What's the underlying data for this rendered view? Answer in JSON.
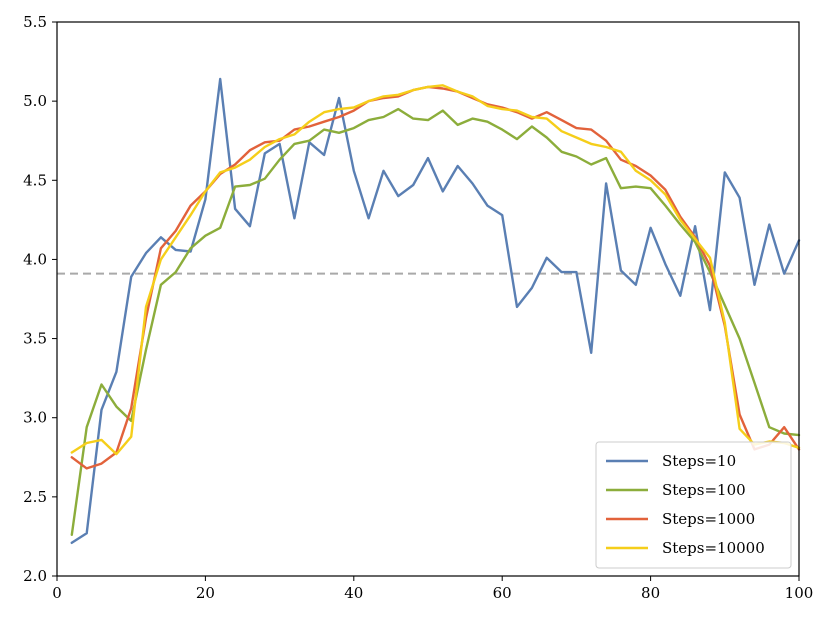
{
  "chart_data": {
    "type": "line",
    "title": "",
    "xlabel": "",
    "ylabel": "",
    "xlim": [
      0,
      100
    ],
    "ylim": [
      2.0,
      5.5
    ],
    "x_ticks": [
      0,
      20,
      40,
      60,
      80,
      100
    ],
    "x_tick_labels": [
      "0",
      "20",
      "40",
      "60",
      "80",
      "100"
    ],
    "y_ticks": [
      2.0,
      2.5,
      3.0,
      3.5,
      4.0,
      4.5,
      5.0,
      5.5
    ],
    "y_tick_labels": [
      "2.0",
      "2.5",
      "3.0",
      "3.5",
      "4.0",
      "4.5",
      "5.0",
      "5.5"
    ],
    "grid": false,
    "legend_position": "bottom-right",
    "reference_line": {
      "y": 3.91,
      "style": "dashed",
      "color": "#a9a9a9"
    },
    "x": [
      2,
      4,
      6,
      8,
      10,
      12,
      14,
      16,
      18,
      20,
      22,
      24,
      26,
      28,
      30,
      32,
      34,
      36,
      38,
      40,
      42,
      44,
      46,
      48,
      50,
      52,
      54,
      56,
      58,
      60,
      62,
      64,
      66,
      68,
      70,
      72,
      74,
      76,
      78,
      80,
      82,
      84,
      86,
      88,
      90,
      92,
      94,
      96,
      98,
      100
    ],
    "series": [
      {
        "name": "Steps=10",
        "color": "#5a7fb3",
        "values": [
          2.21,
          2.27,
          3.05,
          3.29,
          3.89,
          4.04,
          4.14,
          4.06,
          4.05,
          4.38,
          5.14,
          4.32,
          4.21,
          4.67,
          4.73,
          4.26,
          4.74,
          4.66,
          5.02,
          4.56,
          4.26,
          4.56,
          4.4,
          4.47,
          4.64,
          4.43,
          4.59,
          4.48,
          4.34,
          4.28,
          3.7,
          3.82,
          4.01,
          3.92,
          3.92,
          3.41,
          4.48,
          3.93,
          3.84,
          4.2,
          3.97,
          3.77,
          4.21,
          3.68,
          4.55,
          4.39,
          3.84,
          4.22,
          3.91,
          4.12
        ]
      },
      {
        "name": "Steps=100",
        "color": "#8cad3b",
        "values": [
          2.26,
          2.94,
          3.21,
          3.07,
          2.98,
          3.43,
          3.84,
          3.92,
          4.07,
          4.15,
          4.2,
          4.46,
          4.47,
          4.51,
          4.63,
          4.73,
          4.75,
          4.82,
          4.8,
          4.83,
          4.88,
          4.9,
          4.95,
          4.89,
          4.88,
          4.94,
          4.85,
          4.89,
          4.87,
          4.82,
          4.76,
          4.84,
          4.77,
          4.68,
          4.65,
          4.6,
          4.64,
          4.45,
          4.46,
          4.45,
          4.34,
          4.22,
          4.11,
          3.92,
          3.71,
          3.5,
          3.22,
          2.94,
          2.9,
          2.89
        ]
      },
      {
        "name": "Steps=1000",
        "color": "#e2623b",
        "values": [
          2.75,
          2.68,
          2.71,
          2.78,
          3.06,
          3.63,
          4.07,
          4.18,
          4.34,
          4.43,
          4.54,
          4.6,
          4.69,
          4.74,
          4.75,
          4.82,
          4.84,
          4.87,
          4.9,
          4.94,
          5.0,
          5.02,
          5.03,
          5.07,
          5.09,
          5.08,
          5.06,
          5.02,
          4.98,
          4.96,
          4.93,
          4.89,
          4.93,
          4.88,
          4.83,
          4.82,
          4.75,
          4.63,
          4.59,
          4.53,
          4.44,
          4.27,
          4.14,
          3.96,
          3.58,
          3.02,
          2.8,
          2.83,
          2.94,
          2.8
        ]
      },
      {
        "name": "Steps=10000",
        "color": "#f5ce1a",
        "values": [
          2.78,
          2.84,
          2.86,
          2.77,
          2.88,
          3.7,
          4.0,
          4.14,
          4.28,
          4.43,
          4.55,
          4.58,
          4.63,
          4.71,
          4.76,
          4.79,
          4.87,
          4.93,
          4.95,
          4.96,
          5.0,
          5.03,
          5.04,
          5.07,
          5.09,
          5.1,
          5.06,
          5.03,
          4.97,
          4.95,
          4.94,
          4.9,
          4.89,
          4.81,
          4.77,
          4.73,
          4.71,
          4.68,
          4.56,
          4.5,
          4.41,
          4.25,
          4.13,
          4.01,
          3.6,
          2.93,
          2.83,
          2.85,
          2.84,
          2.81
        ]
      }
    ]
  }
}
